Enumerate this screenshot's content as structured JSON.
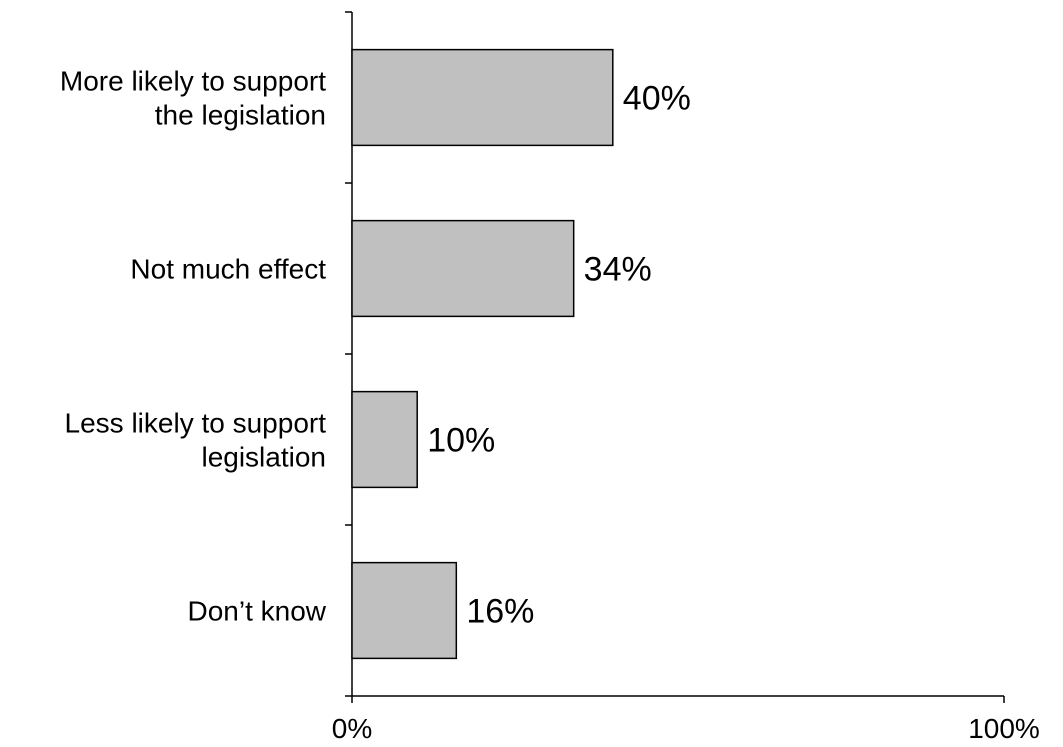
{
  "chart_data": {
    "type": "bar",
    "orientation": "horizontal",
    "categories": [
      [
        "More likely to support",
        "the legislation"
      ],
      [
        "Not much effect"
      ],
      [
        "Less likely to support",
        "legislation"
      ],
      [
        "Don’t know"
      ]
    ],
    "values": [
      40,
      34,
      10,
      16
    ],
    "data_labels": [
      "40%",
      "34%",
      "10%",
      "16%"
    ],
    "xlim": [
      0,
      100
    ],
    "x_tick_labels": [
      "0%",
      "100%"
    ],
    "grid": false,
    "legend": "none",
    "colors": {
      "bar_fill": "#c0c0c0",
      "bar_stroke": "#000000",
      "axis": "#000000",
      "background": "#ffffff"
    }
  }
}
